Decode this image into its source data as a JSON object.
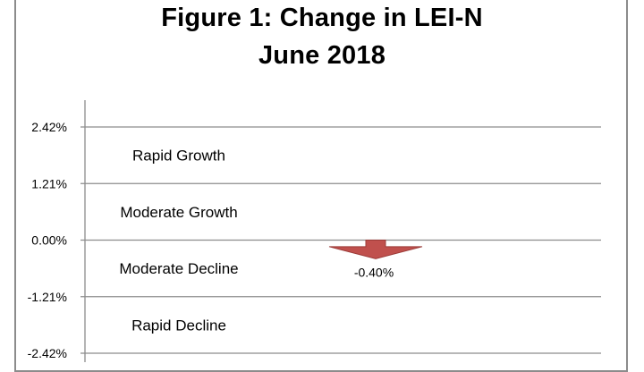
{
  "chart_data": {
    "type": "bar",
    "title": "Figure 1:  Change in LEI-N",
    "subtitle": "June 2018",
    "xlabel": "",
    "ylabel": "",
    "ylim": [
      -2.42,
      2.42
    ],
    "grid": true,
    "yticks": [
      {
        "value": 2.42,
        "label": "2.42%"
      },
      {
        "value": 1.21,
        "label": "1.21%"
      },
      {
        "value": 0.0,
        "label": "0.00%"
      },
      {
        "value": -1.21,
        "label": "-1.21%"
      },
      {
        "value": -2.42,
        "label": "-2.42%"
      }
    ],
    "zones": [
      {
        "label": "Rapid Growth",
        "from": 1.21,
        "to": 2.42
      },
      {
        "label": "Moderate Growth",
        "from": 0.0,
        "to": 1.21
      },
      {
        "label": "Moderate Decline",
        "from": -1.21,
        "to": 0.0
      },
      {
        "label": "Rapid Decline",
        "from": -2.42,
        "to": -1.21
      }
    ],
    "series": [
      {
        "values": [
          -0.4
        ]
      }
    ],
    "value_labels": [
      "-0.40%"
    ],
    "marker": "down-arrow",
    "colors": {
      "arrow": "#c0504d",
      "arrow_dark": "#9b3b38",
      "grid": "#8c8c8c",
      "axis": "#8c8c8c"
    }
  }
}
